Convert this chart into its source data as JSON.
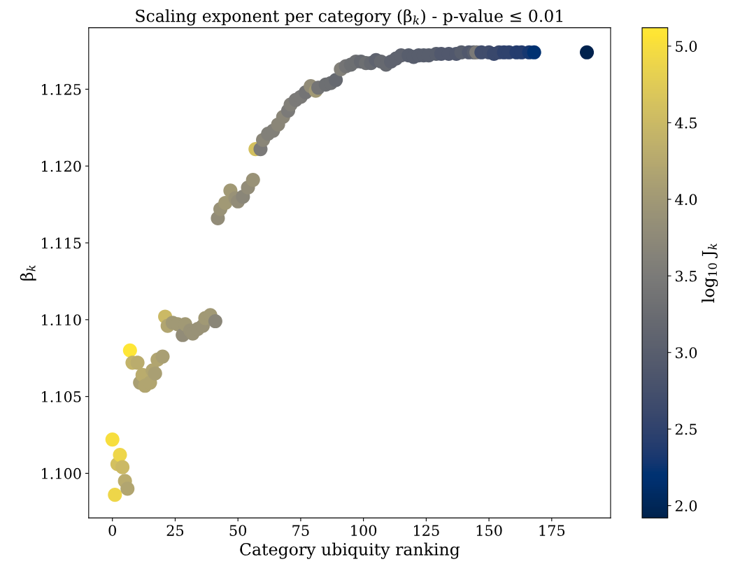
{
  "chart_data": {
    "type": "scatter",
    "title": "Scaling exponent per category (β$_{k}$) - p-value ≤ 0.01",
    "xlabel": "Category ubiquity ranking",
    "ylabel": "β$_{k}$",
    "clabel": "log$_{10}$ J$_{k}$",
    "marker": "circle",
    "x": [
      0,
      1,
      2,
      3,
      4,
      5,
      6,
      7,
      8,
      10,
      11,
      12,
      13,
      15,
      16,
      17,
      18,
      20,
      21,
      22,
      24,
      26,
      28,
      29,
      31,
      32,
      34,
      36,
      37,
      39,
      41,
      42,
      43,
      45,
      47,
      49,
      50,
      52,
      54,
      56,
      57,
      59,
      60,
      62,
      64,
      66,
      68,
      70,
      71,
      73,
      75,
      77,
      79,
      81,
      82,
      85,
      87,
      89,
      91,
      93,
      95,
      97,
      99,
      101,
      103,
      105,
      107,
      109,
      111,
      113,
      115,
      118,
      120,
      122,
      124,
      126,
      129,
      131,
      134,
      137,
      139,
      142,
      144,
      145,
      147,
      150,
      152,
      154,
      156,
      158,
      161,
      163,
      166,
      168,
      189
    ],
    "values": [
      1.1022,
      1.0986,
      1.1006,
      1.1012,
      1.1004,
      1.0995,
      1.099,
      1.108,
      1.1072,
      1.1072,
      1.1059,
      1.1064,
      1.1057,
      1.1059,
      1.1067,
      1.1065,
      1.1074,
      1.1076,
      1.1102,
      1.1096,
      1.1098,
      1.1097,
      1.109,
      1.1097,
      1.1093,
      1.1091,
      1.1094,
      1.1096,
      1.1101,
      1.1103,
      1.1099,
      1.1166,
      1.1172,
      1.1176,
      1.1184,
      1.1179,
      1.1177,
      1.118,
      1.1186,
      1.1191,
      1.1211,
      1.1211,
      1.1217,
      1.1221,
      1.1223,
      1.1227,
      1.1232,
      1.1236,
      1.124,
      1.1243,
      1.1245,
      1.1248,
      1.1252,
      1.1249,
      1.1251,
      1.1253,
      1.1254,
      1.1256,
      1.1263,
      1.1265,
      1.1266,
      1.1268,
      1.1268,
      1.1267,
      1.1267,
      1.1269,
      1.1268,
      1.1266,
      1.1268,
      1.127,
      1.1272,
      1.1272,
      1.1271,
      1.1272,
      1.1272,
      1.1272,
      1.1273,
      1.1273,
      1.1273,
      1.1273,
      1.1274,
      1.1274,
      1.1274,
      1.1274,
      1.1274,
      1.1274,
      1.1273,
      1.1274,
      1.1274,
      1.1274,
      1.1274,
      1.1274,
      1.1274,
      1.1274,
      1.1274
    ],
    "cvalues": [
      5.0,
      4.9,
      4.6,
      4.9,
      4.5,
      4.3,
      4.2,
      5.1,
      4.4,
      4.3,
      4.1,
      4.3,
      4.2,
      4.2,
      4.2,
      4.1,
      4.2,
      4.1,
      4.5,
      4.2,
      4.0,
      4.0,
      3.8,
      4.0,
      3.9,
      3.9,
      3.9,
      3.9,
      4.0,
      4.0,
      3.7,
      3.8,
      3.9,
      4.0,
      4.0,
      3.9,
      3.8,
      3.7,
      3.8,
      3.9,
      4.6,
      3.5,
      3.7,
      3.6,
      3.6,
      3.7,
      3.7,
      3.5,
      3.6,
      3.5,
      3.5,
      3.4,
      3.8,
      4.0,
      3.4,
      3.3,
      3.3,
      3.2,
      3.6,
      3.4,
      3.3,
      3.3,
      3.2,
      3.3,
      3.2,
      3.1,
      3.2,
      3.2,
      3.1,
      3.1,
      3.1,
      3.0,
      3.0,
      3.0,
      3.0,
      3.0,
      3.0,
      2.9,
      2.9,
      2.9,
      3.0,
      2.9,
      3.0,
      3.5,
      2.7,
      2.7,
      2.6,
      2.6,
      2.5,
      2.5,
      2.4,
      2.4,
      2.3,
      2.2,
      1.92
    ],
    "xlim": [
      -9.45,
      198.45
    ],
    "xticks": [
      0,
      25,
      50,
      75,
      100,
      125,
      150,
      175
    ],
    "ylim": [
      1.0971,
      1.129
    ],
    "yticks": [
      {
        "value": 1.1,
        "label": "1.100"
      },
      {
        "value": 1.105,
        "label": "1.105"
      },
      {
        "value": 1.11,
        "label": "1.110"
      },
      {
        "value": 1.115,
        "label": "1.115"
      },
      {
        "value": 1.12,
        "label": "1.120"
      },
      {
        "value": 1.125,
        "label": "1.125"
      }
    ],
    "clim": [
      1.92,
      5.12
    ],
    "cticks": [
      {
        "value": 2.0,
        "label": "2.0"
      },
      {
        "value": 2.5,
        "label": "2.5"
      },
      {
        "value": 3.0,
        "label": "3.0"
      },
      {
        "value": 3.5,
        "label": "3.5"
      },
      {
        "value": 4.0,
        "label": "4.0"
      },
      {
        "value": 4.5,
        "label": "4.5"
      },
      {
        "value": 5.0,
        "label": "5.0"
      }
    ]
  }
}
